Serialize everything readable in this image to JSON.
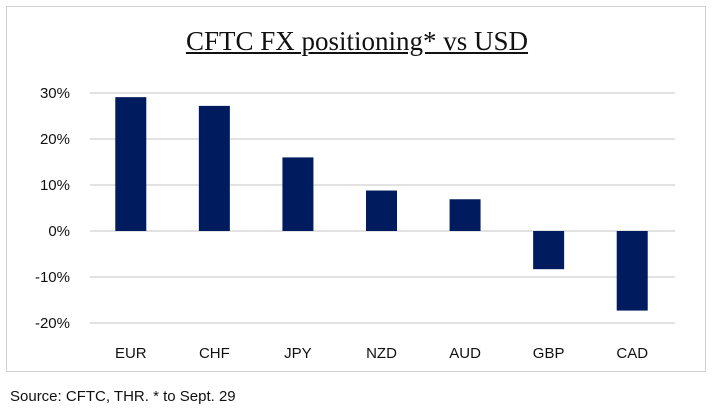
{
  "chart_data": {
    "type": "bar",
    "title": "CFTC FX positioning* vs USD",
    "categories": [
      "EUR",
      "CHF",
      "JPY",
      "NZD",
      "AUD",
      "GBP",
      "CAD"
    ],
    "values": [
      29.1,
      27.2,
      16.0,
      8.8,
      6.9,
      -8.3,
      -17.3
    ],
    "unit": "%",
    "ylim": [
      -20,
      30
    ],
    "yticks": [
      30,
      20,
      10,
      0,
      -10,
      -20
    ],
    "ytick_labels": [
      "30%",
      "20%",
      "10%",
      "0%",
      "-10%",
      "-20%"
    ],
    "xlabel": "",
    "ylabel": "",
    "grid": true,
    "bar_color": "#001C5E",
    "source": "Source: CFTC, THR. * to Sept. 29"
  }
}
